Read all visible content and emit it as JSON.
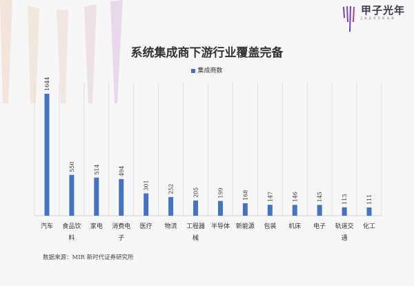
{
  "logo": {
    "name": "甲子光年",
    "sub": "JAZZYEAR"
  },
  "chart_data": {
    "type": "bar",
    "title": "系统集成商下游行业覆盖完备",
    "categories": [
      "汽车",
      "食品饮料",
      "家电",
      "消费电子",
      "医疗",
      "物流",
      "工程器械",
      "半导体",
      "新能源",
      "包装",
      "机床",
      "电子",
      "轨道交通",
      "化工"
    ],
    "series": [
      {
        "name": "集成商数",
        "values": [
          1644,
          550,
          514,
          494,
          301,
          252,
          205,
          199,
          168,
          147,
          146,
          145,
          113,
          111
        ],
        "color": "#4472c4"
      }
    ],
    "ylim": [
      0,
      1644
    ],
    "legend": "top",
    "grid": "vertical",
    "data_labels": true
  },
  "source": "数据来源：MIR 新时代证券研究所"
}
